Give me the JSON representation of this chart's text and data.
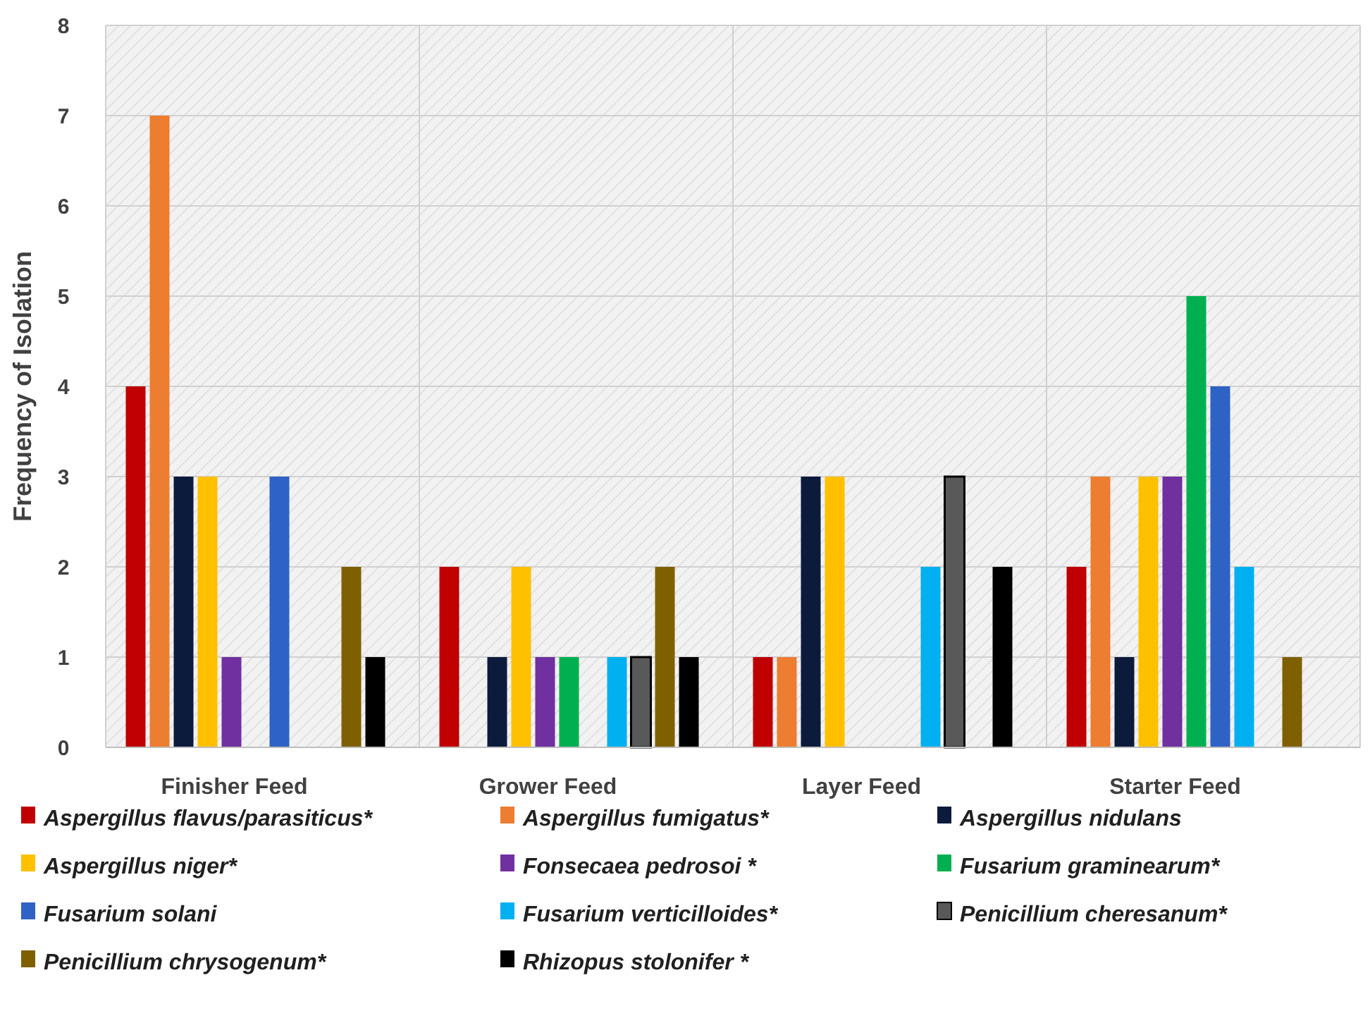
{
  "chart_data": {
    "type": "bar",
    "ylabel": "Frequency of Isolation",
    "categories": [
      "Finisher Feed",
      "Grower Feed",
      "Layer Feed",
      "Starter Feed"
    ],
    "ylim": [
      0,
      8
    ],
    "yticks": [
      0,
      1,
      2,
      3,
      4,
      5,
      6,
      7,
      8
    ],
    "grid": true,
    "legend": "bottom",
    "series": [
      {
        "name": "Aspergillus flavus/parasiticus*",
        "color": "#c00000",
        "values": [
          4,
          2,
          1,
          2
        ]
      },
      {
        "name": "Aspergillus fumigatus*",
        "color": "#ed7d31",
        "values": [
          7,
          0,
          1,
          3
        ]
      },
      {
        "name": "Aspergillus nidulans",
        "color": "#0c1a3c",
        "values": [
          3,
          1,
          3,
          1
        ]
      },
      {
        "name": "Aspergillus niger*",
        "color": "#ffc000",
        "values": [
          3,
          2,
          3,
          3
        ]
      },
      {
        "name": "Fonsecaea pedrosoi *",
        "color": "#7030a0",
        "values": [
          1,
          1,
          0,
          3
        ]
      },
      {
        "name": "Fusarium graminearum*",
        "color": "#00b050",
        "values": [
          0,
          1,
          0,
          5
        ]
      },
      {
        "name": "Fusarium solani",
        "color": "#2e62c4",
        "values": [
          3,
          0,
          0,
          4
        ]
      },
      {
        "name": "Fusarium verticilloides*",
        "color": "#00b0f0",
        "values": [
          0,
          1,
          2,
          2
        ]
      },
      {
        "name": "Penicillium cheresanum*",
        "color": "#595959",
        "values": [
          0,
          1,
          3,
          0
        ]
      },
      {
        "name": "Penicillium chrysogenum*",
        "color": "#7f6000",
        "values": [
          2,
          2,
          0,
          1
        ]
      },
      {
        "name": "Rhizopus stolonifer *",
        "color": "#000000",
        "values": [
          1,
          1,
          2,
          0
        ]
      }
    ]
  }
}
